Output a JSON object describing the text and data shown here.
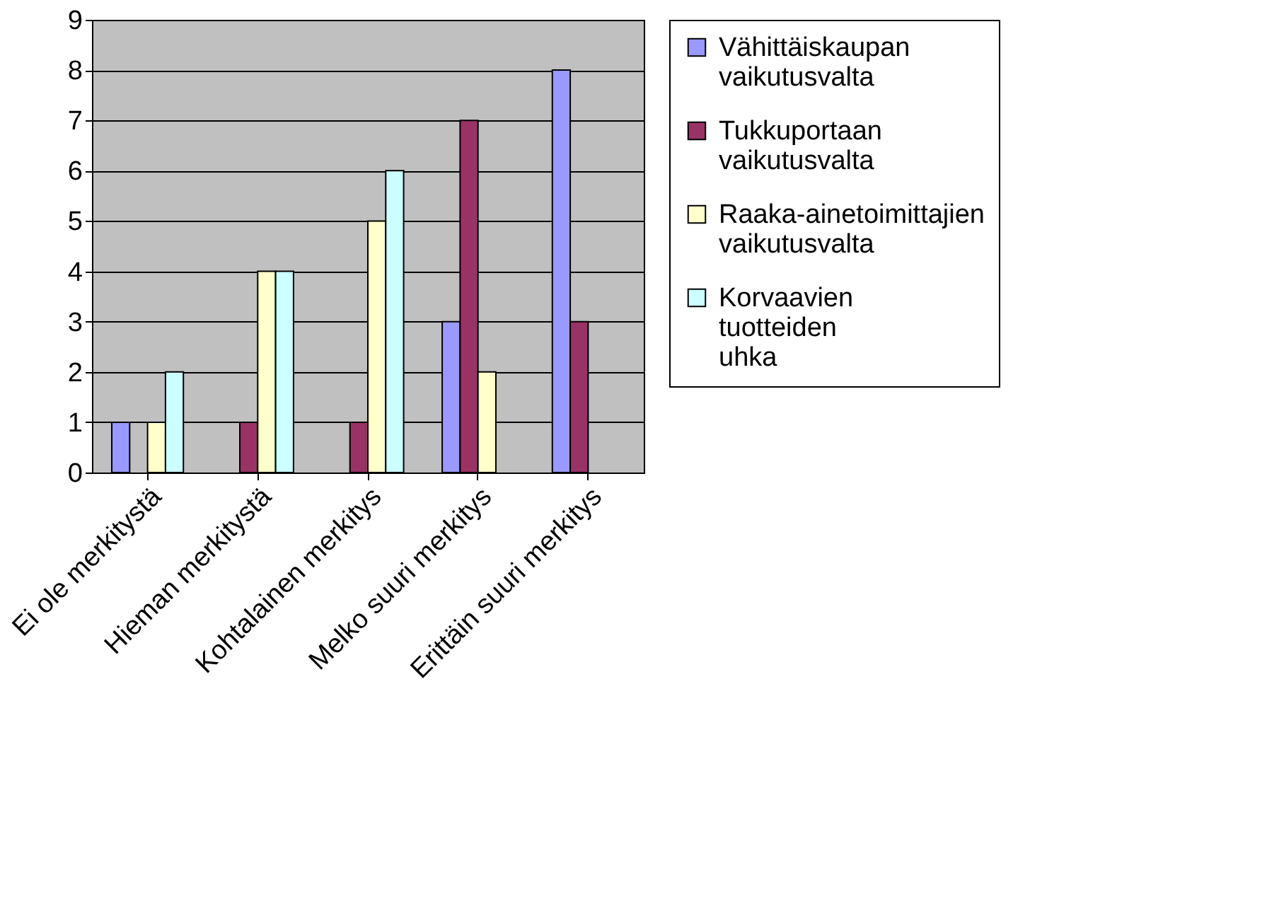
{
  "chart_data": {
    "type": "bar",
    "categories": [
      "Ei ole merkitystä",
      "Hieman merkitystä",
      "Kohtalainen merkitys",
      "Melko suuri merkitys",
      "Erittäin suuri merkitys"
    ],
    "series": [
      {
        "name": "Vähittäiskaupan vaikutusvalta",
        "color": "#9999ff",
        "values": [
          1,
          null,
          null,
          3,
          8
        ]
      },
      {
        "name": "Tukkuportaan vaikutusvalta",
        "color": "#993366",
        "values": [
          null,
          1,
          1,
          7,
          3
        ]
      },
      {
        "name": "Raaka-ainetoimittajien vaikutusvalta",
        "color": "#ffffcc",
        "values": [
          1,
          4,
          5,
          2,
          null
        ]
      },
      {
        "name": "Korvaavien tuotteiden uhka",
        "color": "#ccffff",
        "values": [
          2,
          4,
          6,
          null,
          null
        ]
      }
    ],
    "ylim": [
      0,
      9
    ],
    "yticks": [
      0,
      1,
      2,
      3,
      4,
      5,
      6,
      7,
      8,
      9
    ],
    "grid": "y",
    "legend": "right"
  }
}
